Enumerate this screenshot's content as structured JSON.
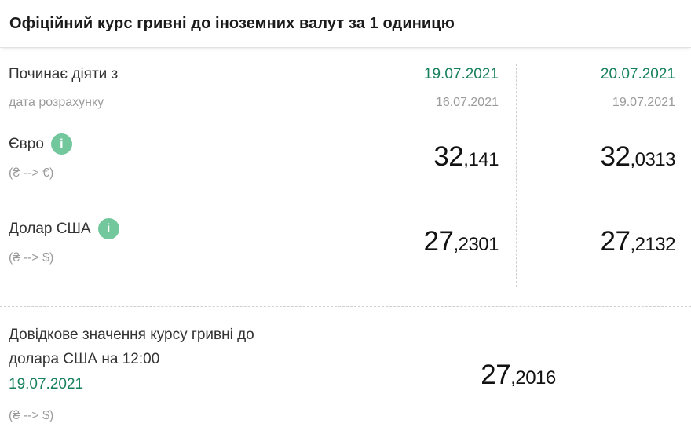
{
  "title": "Офіційний курс гривні до іноземних валут за 1 одиницю",
  "colors": {
    "accent_green": "#17805e",
    "info_icon_green": "#72c79c",
    "muted_gray": "#9b9b9b",
    "number_black": "#121212"
  },
  "icons": {
    "info_glyph": "i"
  },
  "rates": {
    "header": {
      "label": "Починає діяти з",
      "sublabel": "дата розрахунку",
      "columns": [
        {
          "effective_date": "19.07.2021",
          "calc_date": "16.07.2021"
        },
        {
          "effective_date": "20.07.2021",
          "calc_date": "19.07.2021"
        }
      ]
    },
    "rows": [
      {
        "label": "Євро",
        "sublabel": "(₴ --> €)",
        "values": [
          {
            "int": "32",
            "dec": ",141"
          },
          {
            "int": "32",
            "dec": ",0313"
          }
        ]
      },
      {
        "label": "Долар США",
        "sublabel": "(₴ --> $)",
        "values": [
          {
            "int": "27",
            "dec": ",2301"
          },
          {
            "int": "27",
            "dec": ",2132"
          }
        ]
      }
    ]
  },
  "reference": {
    "label_line1": "Довідкове значення курсу гривні до",
    "label_line2": "долара США на 12:00",
    "date": "19.07.2021",
    "sublabel": "(₴ --> $)",
    "value": {
      "int": "27",
      "dec": ",2016"
    }
  }
}
